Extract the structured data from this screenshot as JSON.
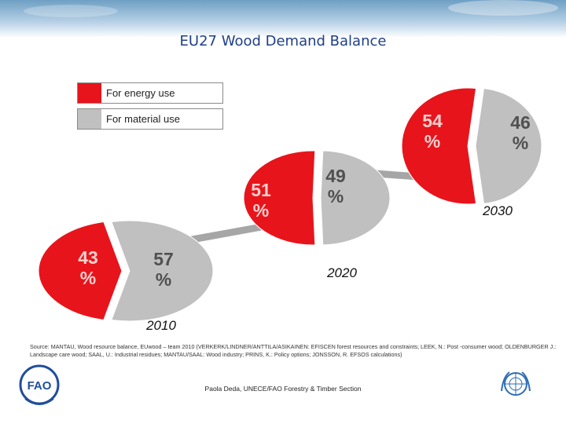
{
  "slide": {
    "title": "EU27 Wood Demand Balance",
    "source_note": "Source: MANTAU, Wood resource balance, EUwood – team 2010 (VERKERK/LINDNER/ANTTILA/ASIKAINEN: EFISCEN forest resources and constraints; LEEK, N.: Post -consumer wood; OLDENBURGER J.: Landscape care wood; SAAL, U.: Industrial residues; MANTAU/SAAL: Wood industry; PRINS, K.: Policy options; JONSSON, R. EFSOS calculations)",
    "footer": "Paola Deda, UNECE/FAO Forestry & Timber Section"
  },
  "logos": {
    "left": "fao-logo",
    "right": "un-logo"
  },
  "colors": {
    "energy": "#e8141b",
    "material": "#c0c0c0",
    "connector": "#a6a6a6",
    "title": "#1f3f8a"
  },
  "chart_data": {
    "type": "pie",
    "title": "",
    "legend": {
      "placement": "top-left",
      "entries": [
        "For energy use",
        "For material use"
      ]
    },
    "series_names": [
      "For energy use",
      "For material use"
    ],
    "pies": [
      {
        "year": "2010",
        "values": [
          43,
          57
        ],
        "labels": [
          "43 %",
          "57 %"
        ]
      },
      {
        "year": "2020",
        "values": [
          51,
          49
        ],
        "labels": [
          "51 %",
          "49 %"
        ]
      },
      {
        "year": "2030",
        "values": [
          54,
          46
        ],
        "labels": [
          "54 %",
          "46 %"
        ]
      }
    ]
  }
}
